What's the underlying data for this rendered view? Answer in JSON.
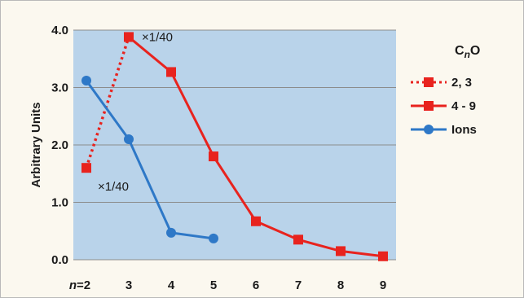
{
  "chart_data": {
    "type": "line",
    "ylabel": "Arbitrary Units",
    "x_tick_labels": [
      "n=2",
      "3",
      "4",
      "5",
      "6",
      "7",
      "8",
      "9"
    ],
    "x_range": [
      2,
      9
    ],
    "ylim": [
      0,
      4
    ],
    "y_ticks": [
      "0.0",
      "1.0",
      "2.0",
      "3.0",
      "4.0"
    ],
    "grid": "horizontal",
    "legend": {
      "title": "CnO",
      "title_main": "C",
      "title_sub": "n",
      "title_end": "O",
      "placement": "right"
    },
    "series": [
      {
        "name": "2, 3",
        "color": "#e8231e",
        "style": "dotted",
        "marker": "square",
        "x": [
          2,
          3
        ],
        "y": [
          1.6,
          3.88
        ]
      },
      {
        "name": "4 - 9",
        "color": "#e8231e",
        "style": "solid",
        "marker": "square",
        "x": [
          3,
          4,
          5,
          6,
          7,
          8,
          9
        ],
        "y": [
          3.88,
          3.27,
          1.8,
          0.67,
          0.35,
          0.15,
          0.06
        ]
      },
      {
        "name": "Ions",
        "color": "#2e78c7",
        "style": "solid",
        "marker": "circle",
        "x": [
          2,
          3,
          4,
          5
        ],
        "y": [
          3.12,
          2.1,
          0.47,
          0.37
        ]
      }
    ],
    "annotations": [
      {
        "text": "×1/40",
        "x": 3,
        "y": 3.88
      },
      {
        "text": "×1/40",
        "x": 2,
        "y": 1.6
      }
    ]
  }
}
